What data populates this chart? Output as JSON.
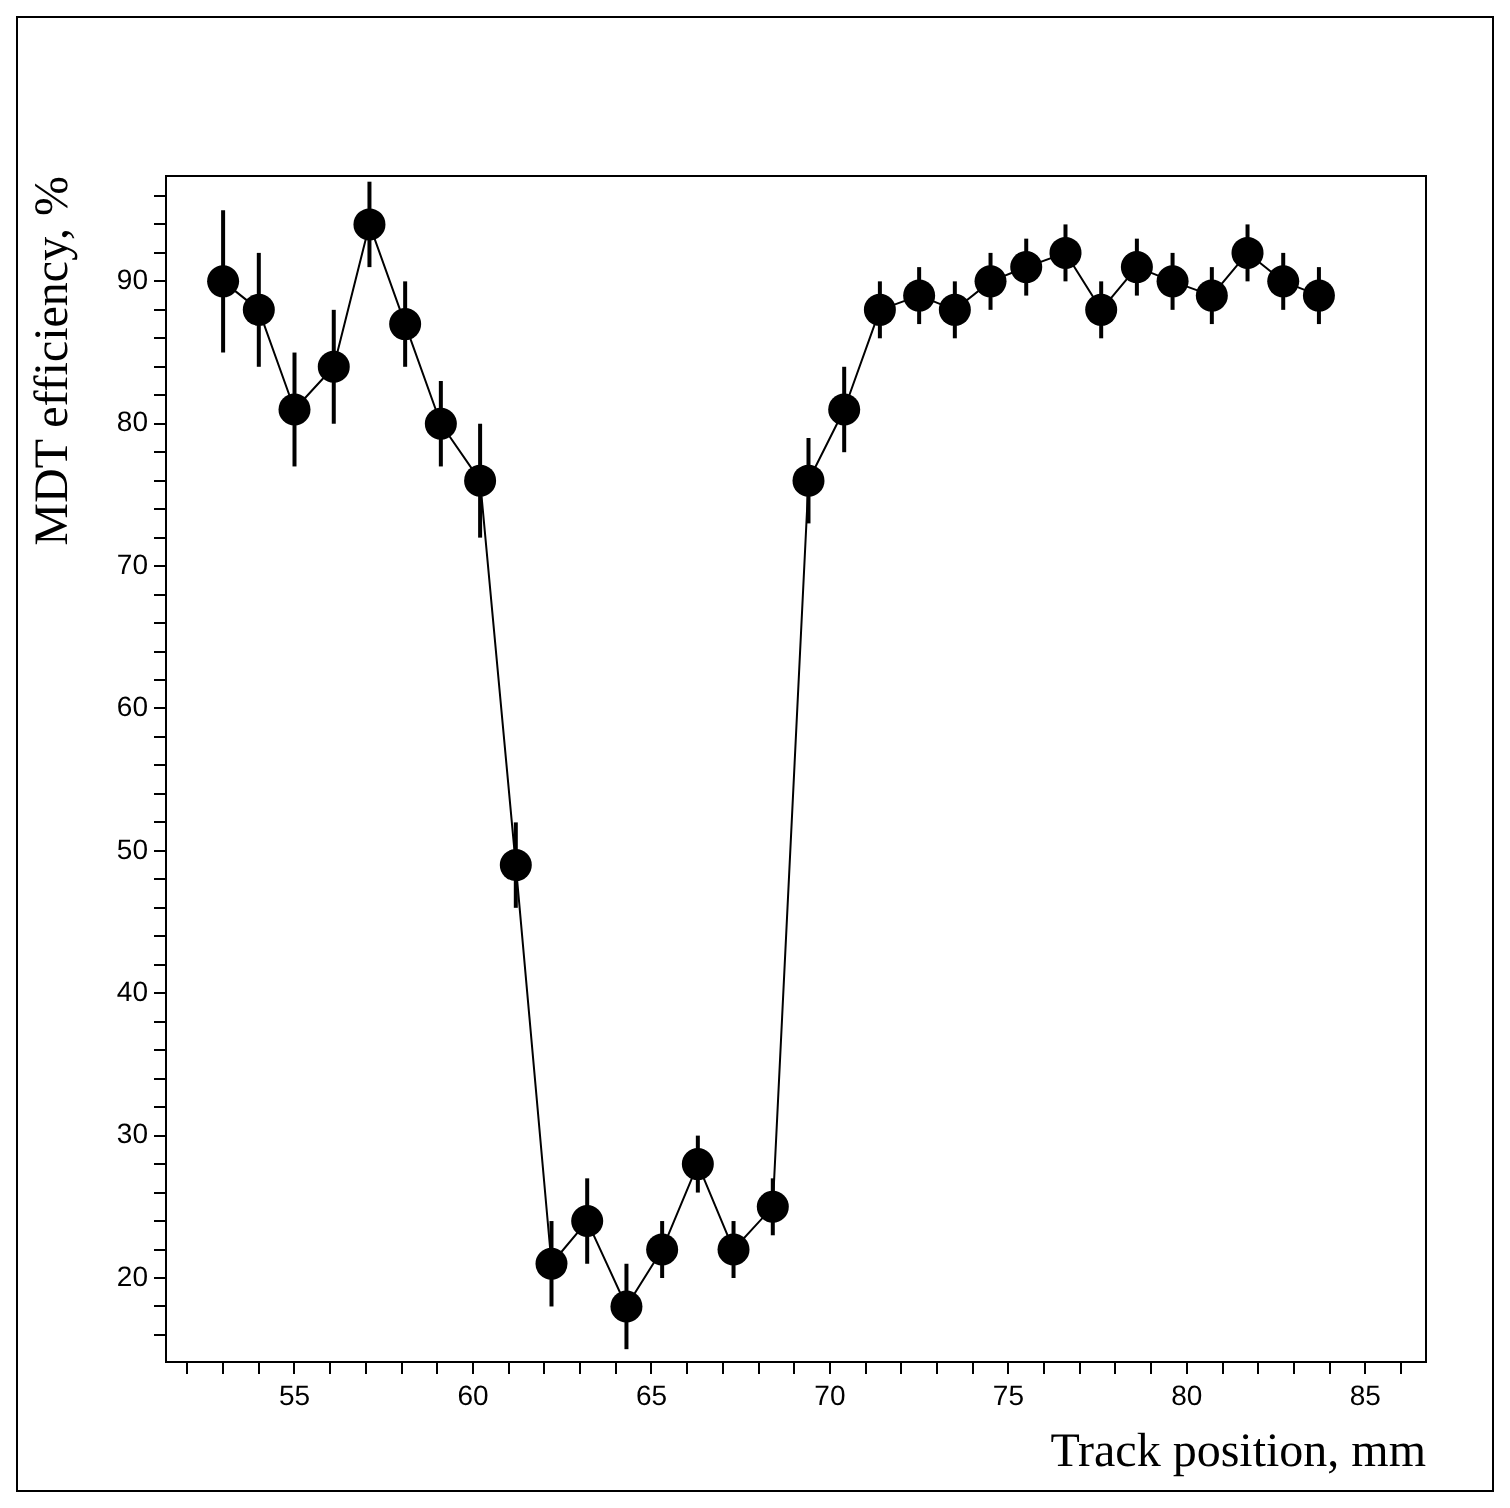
{
  "chart_data": {
    "type": "line",
    "xlabel": "Track position, mm",
    "ylabel": "MDT efficiency, %",
    "x": [
      53.0,
      54.0,
      55.0,
      56.1,
      57.1,
      58.1,
      59.1,
      60.2,
      61.2,
      62.2,
      63.2,
      64.3,
      65.3,
      66.3,
      67.3,
      68.4,
      69.4,
      70.4,
      71.4,
      72.5,
      73.5,
      74.5,
      75.5,
      76.6,
      77.6,
      78.6,
      79.6,
      80.7,
      81.7,
      82.7,
      83.7
    ],
    "series": [
      {
        "color": "#000000",
        "values": [
          90,
          88,
          81,
          84,
          94,
          87,
          80,
          76,
          49,
          21,
          24,
          18,
          22,
          28,
          22,
          25,
          76,
          81,
          88,
          89,
          88,
          90,
          91,
          92,
          88,
          91,
          90,
          89,
          92,
          90,
          89
        ],
        "errors": [
          5,
          4,
          4,
          4,
          3,
          3,
          3,
          4,
          3,
          3,
          3,
          3,
          2,
          2,
          2,
          2,
          3,
          3,
          2,
          2,
          2,
          2,
          2,
          2,
          2,
          2,
          2,
          2,
          2,
          2,
          2
        ]
      }
    ],
    "xlim": [
      51.4,
      86.7
    ],
    "ylim": [
      14.1,
      97.4
    ],
    "xticks": [
      {
        "value": 52,
        "label": null
      },
      {
        "value": 53,
        "label": null
      },
      {
        "value": 54,
        "label": null
      },
      55,
      {
        "value": 56,
        "label": null
      },
      {
        "value": 57,
        "label": null
      },
      {
        "value": 58,
        "label": null
      },
      {
        "value": 59,
        "label": null
      },
      60,
      {
        "value": 61,
        "label": null
      },
      {
        "value": 62,
        "label": null
      },
      {
        "value": 63,
        "label": null
      },
      {
        "value": 64,
        "label": null
      },
      65,
      {
        "value": 66,
        "label": null
      },
      {
        "value": 67,
        "label": null
      },
      {
        "value": 68,
        "label": null
      },
      {
        "value": 69,
        "label": null
      },
      70,
      {
        "value": 71,
        "label": null
      },
      {
        "value": 72,
        "label": null
      },
      {
        "value": 73,
        "label": null
      },
      {
        "value": 74,
        "label": null
      },
      75,
      {
        "value": 76,
        "label": null
      },
      {
        "value": 77,
        "label": null
      },
      {
        "value": 78,
        "label": null
      },
      {
        "value": 79,
        "label": null
      },
      80,
      {
        "value": 81,
        "label": null
      },
      {
        "value": 82,
        "label": null
      },
      {
        "value": 83,
        "label": null
      },
      {
        "value": 84,
        "label": null
      },
      85,
      {
        "value": 86,
        "label": null
      }
    ],
    "yticks": [
      {
        "value": 16,
        "label": null
      },
      {
        "value": 18,
        "label": null
      },
      20,
      {
        "value": 22,
        "label": null
      },
      {
        "value": 24,
        "label": null
      },
      {
        "value": 26,
        "label": null
      },
      {
        "value": 28,
        "label": null
      },
      30,
      {
        "value": 32,
        "label": null
      },
      {
        "value": 34,
        "label": null
      },
      {
        "value": 36,
        "label": null
      },
      {
        "value": 38,
        "label": null
      },
      40,
      {
        "value": 42,
        "label": null
      },
      {
        "value": 44,
        "label": null
      },
      {
        "value": 46,
        "label": null
      },
      {
        "value": 48,
        "label": null
      },
      50,
      {
        "value": 52,
        "label": null
      },
      {
        "value": 54,
        "label": null
      },
      {
        "value": 56,
        "label": null
      },
      {
        "value": 58,
        "label": null
      },
      60,
      {
        "value": 62,
        "label": null
      },
      {
        "value": 64,
        "label": null
      },
      {
        "value": 66,
        "label": null
      },
      {
        "value": 68,
        "label": null
      },
      70,
      {
        "value": 72,
        "label": null
      },
      {
        "value": 74,
        "label": null
      },
      {
        "value": 76,
        "label": null
      },
      {
        "value": 78,
        "label": null
      },
      80,
      {
        "value": 82,
        "label": null
      },
      {
        "value": 84,
        "label": null
      },
      {
        "value": 86,
        "label": null
      },
      {
        "value": 88,
        "label": null
      },
      90,
      {
        "value": 92,
        "label": null
      },
      {
        "value": 94,
        "label": null
      },
      {
        "value": 96,
        "label": null
      }
    ],
    "legend": false,
    "marker": "circle",
    "line_style": "solid"
  }
}
